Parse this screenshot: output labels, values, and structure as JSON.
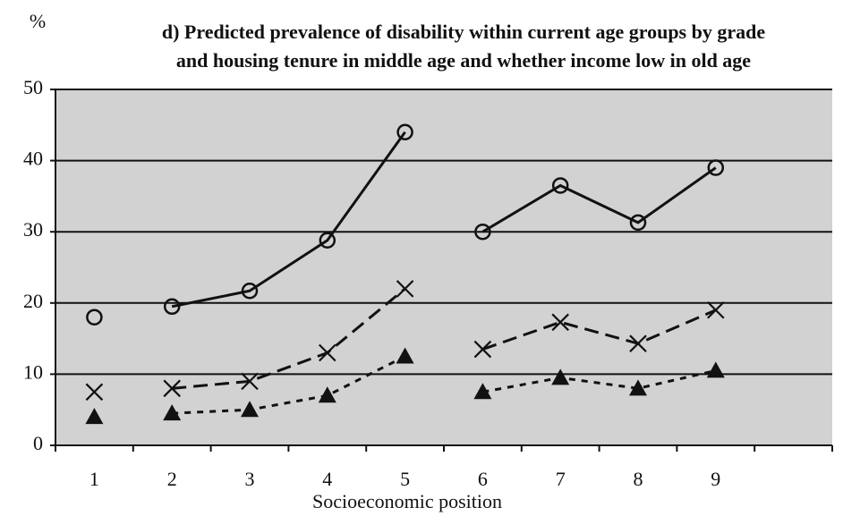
{
  "chart_data": {
    "type": "line",
    "y_unit": "%",
    "title": [
      "d) Predicted prevalence of disability within current age groups by grade",
      "and housing tenure in middle age and whether income low in old age"
    ],
    "x_label": "Socioeconomic position",
    "categories": [
      "1",
      "2",
      "3",
      "4",
      "5",
      "6",
      "7",
      "8",
      "9"
    ],
    "series": [
      {
        "color": "#111111",
        "marker": "circle",
        "dash": "solid",
        "values": [
          18,
          19.5,
          21.7,
          28.8,
          44,
          30,
          36.5,
          31.3,
          39
        ]
      },
      {
        "color": "#111111",
        "marker": "cross",
        "dash": "long",
        "values": [
          7.5,
          8,
          9,
          13,
          22,
          13.5,
          17.3,
          14.3,
          19
        ]
      },
      {
        "color": "#111111",
        "marker": "triangle",
        "dash": "short",
        "values": [
          4,
          4.5,
          5,
          7,
          12.5,
          7.5,
          9.5,
          8,
          10.5
        ]
      }
    ],
    "ylim": [
      0,
      50
    ],
    "yticks": [
      0,
      10,
      20,
      30,
      40,
      50
    ],
    "grid": true
  }
}
